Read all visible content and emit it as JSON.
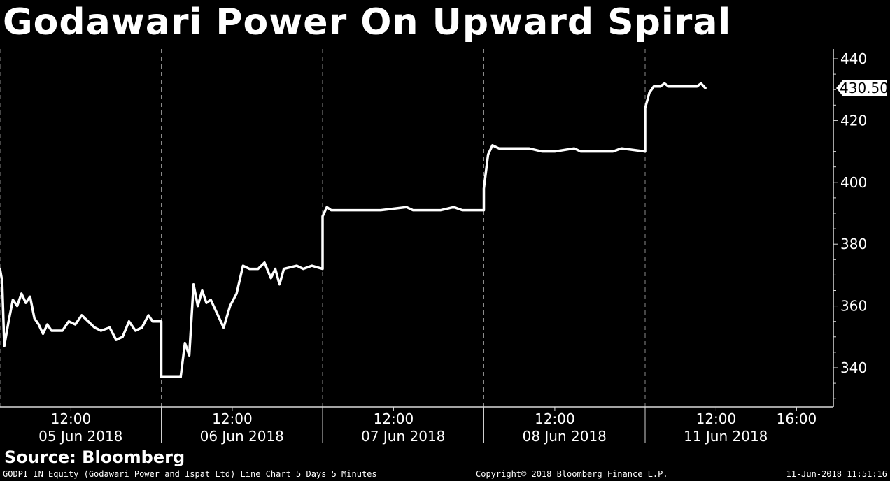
{
  "title": "Godawari Power On Upward Spiral",
  "source": "Source: Bloomberg",
  "footer": {
    "left": "GODPI IN Equity (Godawari Power and Ispat Ltd) Line Chart 5 Days 5 Minutes",
    "center": "Copyright© 2018 Bloomberg Finance L.P.",
    "right": "11-Jun-2018 11:51:16"
  },
  "chart_data": {
    "type": "line",
    "title": "Godawari Power On Upward Spiral",
    "xlabel": "",
    "ylabel": "",
    "ylim": [
      328,
      443
    ],
    "y_ticks": [
      "340",
      "360",
      "380",
      "400",
      "420",
      "440"
    ],
    "last_value_label": "430.50",
    "grid": "vertical dashed lines at day boundaries",
    "legend": "none",
    "days": [
      {
        "date_label": "05 Jun 2018",
        "time_label": "12:00"
      },
      {
        "date_label": "06 Jun 2018",
        "time_label": "12:00"
      },
      {
        "date_label": "07 Jun 2018",
        "time_label": "12:00"
      },
      {
        "date_label": "08 Jun 2018",
        "time_label": "12:00"
      },
      {
        "date_label": "11 Jun 2018",
        "time_label": "12:00",
        "extra_time_label": "16:00"
      }
    ],
    "series": [
      {
        "points": [
          [
            "05 Jun 09:15",
            372
          ],
          [
            "05 Jun 09:20",
            368
          ],
          [
            "05 Jun 09:25",
            347
          ],
          [
            "05 Jun 09:35",
            355
          ],
          [
            "05 Jun 09:45",
            362
          ],
          [
            "05 Jun 09:55",
            360
          ],
          [
            "05 Jun 10:05",
            364
          ],
          [
            "05 Jun 10:15",
            361
          ],
          [
            "05 Jun 10:25",
            363
          ],
          [
            "05 Jun 10:35",
            356
          ],
          [
            "05 Jun 10:45",
            354
          ],
          [
            "05 Jun 10:55",
            351
          ],
          [
            "05 Jun 11:05",
            354
          ],
          [
            "05 Jun 11:15",
            352
          ],
          [
            "05 Jun 11:40",
            352
          ],
          [
            "05 Jun 11:55",
            355
          ],
          [
            "05 Jun 12:10",
            354
          ],
          [
            "05 Jun 12:25",
            357
          ],
          [
            "05 Jun 12:40",
            355
          ],
          [
            "05 Jun 12:55",
            353
          ],
          [
            "05 Jun 13:10",
            352
          ],
          [
            "05 Jun 13:30",
            353
          ],
          [
            "05 Jun 13:45",
            349
          ],
          [
            "05 Jun 14:00",
            350
          ],
          [
            "05 Jun 14:15",
            355
          ],
          [
            "05 Jun 14:30",
            352
          ],
          [
            "05 Jun 14:45",
            353
          ],
          [
            "05 Jun 15:00",
            357
          ],
          [
            "05 Jun 15:10",
            355
          ],
          [
            "05 Jun 15:30",
            355
          ],
          [
            "06 Jun 09:15",
            337
          ],
          [
            "06 Jun 10:00",
            337
          ],
          [
            "06 Jun 10:10",
            348
          ],
          [
            "06 Jun 10:20",
            344
          ],
          [
            "06 Jun 10:30",
            367
          ],
          [
            "06 Jun 10:40",
            360
          ],
          [
            "06 Jun 10:50",
            365
          ],
          [
            "06 Jun 11:00",
            361
          ],
          [
            "06 Jun 11:10",
            362
          ],
          [
            "06 Jun 11:40",
            353
          ],
          [
            "06 Jun 11:55",
            360
          ],
          [
            "06 Jun 12:10",
            364
          ],
          [
            "06 Jun 12:25",
            373
          ],
          [
            "06 Jun 12:40",
            372
          ],
          [
            "06 Jun 13:00",
            372
          ],
          [
            "06 Jun 13:15",
            374
          ],
          [
            "06 Jun 13:30",
            369
          ],
          [
            "06 Jun 13:40",
            372
          ],
          [
            "06 Jun 13:50",
            367
          ],
          [
            "06 Jun 14:00",
            372
          ],
          [
            "06 Jun 14:30",
            373
          ],
          [
            "06 Jun 14:45",
            372
          ],
          [
            "06 Jun 15:05",
            373
          ],
          [
            "06 Jun 15:30",
            372
          ],
          [
            "07 Jun 09:15",
            389
          ],
          [
            "07 Jun 09:25",
            392
          ],
          [
            "07 Jun 09:35",
            391
          ],
          [
            "07 Jun 10:00",
            391
          ],
          [
            "07 Jun 10:20",
            391
          ],
          [
            "07 Jun 10:40",
            391
          ],
          [
            "07 Jun 11:30",
            391
          ],
          [
            "07 Jun 12:30",
            392
          ],
          [
            "07 Jun 12:45",
            391
          ],
          [
            "07 Jun 13:50",
            391
          ],
          [
            "07 Jun 14:20",
            392
          ],
          [
            "07 Jun 14:40",
            391
          ],
          [
            "07 Jun 15:30",
            391
          ],
          [
            "08 Jun 09:15",
            398
          ],
          [
            "08 Jun 09:25",
            409
          ],
          [
            "08 Jun 09:35",
            412
          ],
          [
            "08 Jun 09:50",
            411
          ],
          [
            "08 Jun 10:10",
            411
          ],
          [
            "08 Jun 10:30",
            411
          ],
          [
            "08 Jun 11:00",
            411
          ],
          [
            "08 Jun 11:30",
            410
          ],
          [
            "08 Jun 12:00",
            410
          ],
          [
            "08 Jun 12:45",
            411
          ],
          [
            "08 Jun 13:00",
            410
          ],
          [
            "08 Jun 14:15",
            410
          ],
          [
            "08 Jun 14:35",
            411
          ],
          [
            "08 Jun 15:30",
            410
          ],
          [
            "11 Jun 09:15",
            424
          ],
          [
            "11 Jun 09:25",
            429
          ],
          [
            "11 Jun 09:35",
            431
          ],
          [
            "11 Jun 09:50",
            431
          ],
          [
            "11 Jun 10:00",
            432
          ],
          [
            "11 Jun 10:10",
            431
          ],
          [
            "11 Jun 10:40",
            431
          ],
          [
            "11 Jun 11:00",
            431
          ],
          [
            "11 Jun 11:15",
            431
          ],
          [
            "11 Jun 11:25",
            432
          ],
          [
            "11 Jun 11:35",
            430.5
          ]
        ]
      }
    ]
  }
}
